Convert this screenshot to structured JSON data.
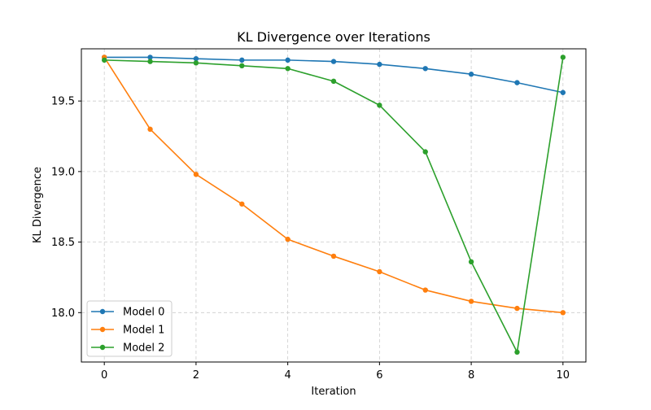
{
  "chart_data": {
    "type": "line",
    "title": "KL Divergence over Iterations",
    "xlabel": "Iteration",
    "ylabel": "KL Divergence",
    "xlim": [
      -0.5,
      10.5
    ],
    "ylim": [
      17.65,
      19.87
    ],
    "xticks": [
      0,
      2,
      4,
      6,
      8,
      10
    ],
    "yticks": [
      18.0,
      18.5,
      19.0,
      19.5
    ],
    "ytick_labels": [
      "18.0",
      "18.5",
      "19.0",
      "19.5"
    ],
    "grid": true,
    "legend_position": "lower-left",
    "x": [
      0,
      1,
      2,
      3,
      4,
      5,
      6,
      7,
      8,
      9,
      10
    ],
    "series": [
      {
        "name": "Model 0",
        "color": "#1f77b4",
        "values": [
          19.81,
          19.81,
          19.8,
          19.79,
          19.79,
          19.78,
          19.76,
          19.73,
          19.69,
          19.63,
          19.56
        ]
      },
      {
        "name": "Model 1",
        "color": "#ff7f0e",
        "values": [
          19.81,
          19.3,
          18.98,
          18.77,
          18.52,
          18.4,
          18.29,
          18.16,
          18.08,
          18.03,
          18.0
        ]
      },
      {
        "name": "Model 2",
        "color": "#2ca02c",
        "values": [
          19.79,
          19.78,
          19.77,
          19.75,
          19.73,
          19.64,
          19.47,
          19.14,
          18.36,
          17.72,
          19.81
        ]
      }
    ]
  }
}
